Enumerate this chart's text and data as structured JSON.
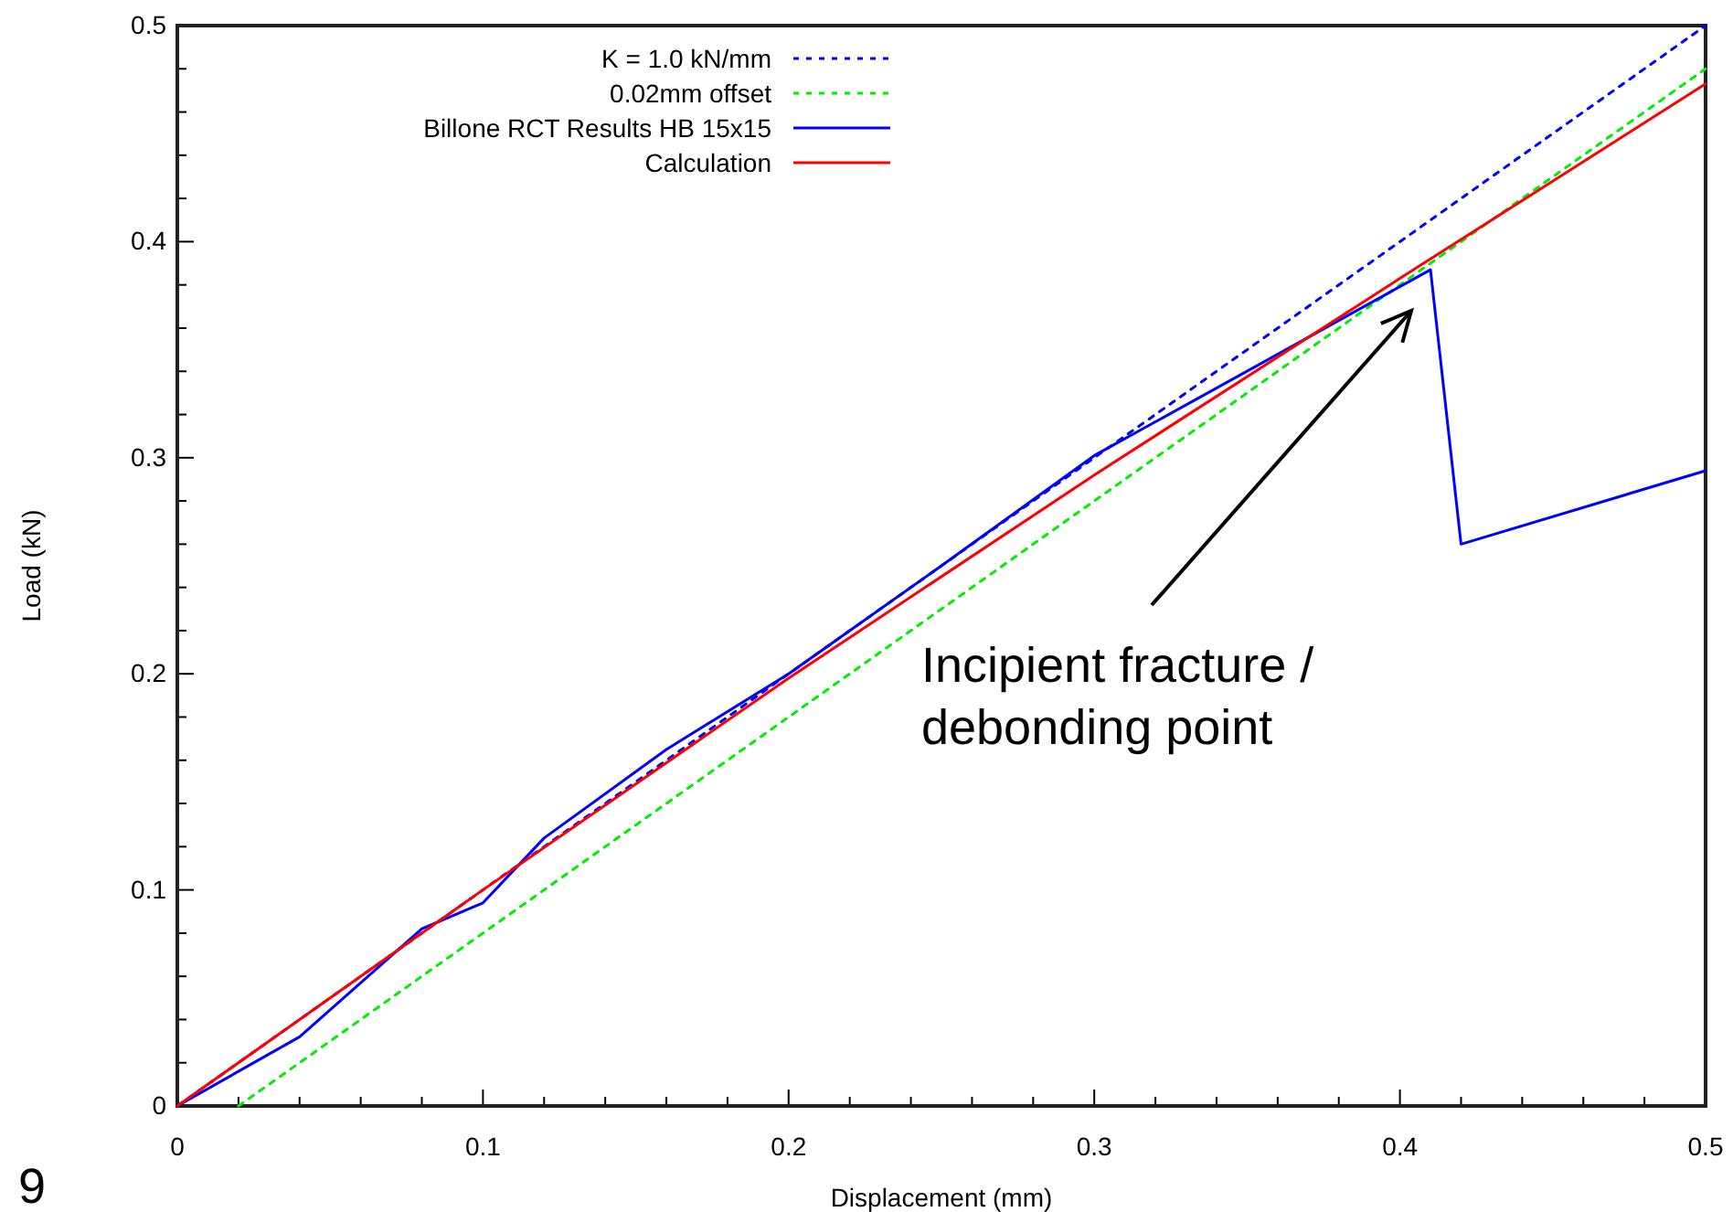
{
  "chart_data": {
    "type": "line",
    "xlabel": "Displacement (mm)",
    "ylabel": "Load (kN)",
    "xlim": [
      0,
      0.5
    ],
    "ylim": [
      0,
      0.5
    ],
    "xticks": [
      0,
      {
        "value": 0.02,
        "label": null
      },
      {
        "value": 0.04,
        "label": null
      },
      {
        "value": 0.06,
        "label": null
      },
      {
        "value": 0.08,
        "label": null
      },
      0.1,
      {
        "value": 0.12,
        "label": null
      },
      {
        "value": 0.14,
        "label": null
      },
      {
        "value": 0.16,
        "label": null
      },
      {
        "value": 0.18,
        "label": null
      },
      0.2,
      {
        "value": 0.22,
        "label": null
      },
      {
        "value": 0.24,
        "label": null
      },
      {
        "value": 0.26,
        "label": null
      },
      {
        "value": 0.28,
        "label": null
      },
      0.3,
      {
        "value": 0.32,
        "label": null
      },
      {
        "value": 0.34,
        "label": null
      },
      {
        "value": 0.36,
        "label": null
      },
      {
        "value": 0.38,
        "label": null
      },
      0.4,
      {
        "value": 0.42,
        "label": null
      },
      {
        "value": 0.44,
        "label": null
      },
      {
        "value": 0.46,
        "label": null
      },
      {
        "value": 0.48,
        "label": null
      },
      0.5
    ],
    "yticks": [
      0,
      {
        "value": 0.02,
        "label": null
      },
      {
        "value": 0.04,
        "label": null
      },
      {
        "value": 0.06,
        "label": null
      },
      {
        "value": 0.08,
        "label": null
      },
      0.1,
      {
        "value": 0.12,
        "label": null
      },
      {
        "value": 0.14,
        "label": null
      },
      {
        "value": 0.16,
        "label": null
      },
      {
        "value": 0.18,
        "label": null
      },
      0.2,
      {
        "value": 0.22,
        "label": null
      },
      {
        "value": 0.24,
        "label": null
      },
      {
        "value": 0.26,
        "label": null
      },
      {
        "value": 0.28,
        "label": null
      },
      0.3,
      {
        "value": 0.32,
        "label": null
      },
      {
        "value": 0.34,
        "label": null
      },
      {
        "value": 0.36,
        "label": null
      },
      {
        "value": 0.38,
        "label": null
      },
      0.4,
      {
        "value": 0.42,
        "label": null
      },
      {
        "value": 0.44,
        "label": null
      },
      {
        "value": 0.46,
        "label": null
      },
      {
        "value": 0.48,
        "label": null
      },
      0.5
    ],
    "grid": false,
    "legend": "top left",
    "marker": "none",
    "series": [
      {
        "name": "K = 1.0 kN/mm",
        "color": "#0000ff",
        "line_style": "dotted",
        "x": [
          0,
          0.5
        ],
        "values": [
          0,
          0.5
        ]
      },
      {
        "name": "0.02mm offset",
        "color": "#00ee00",
        "line_style": "dotted",
        "x": [
          0.02,
          0.5
        ],
        "values": [
          0,
          0.48
        ]
      },
      {
        "name": "Billone RCT Results HB 15x15",
        "color": "#0000ff",
        "line_style": "solid",
        "x": [
          0,
          0.04,
          0.08,
          0.1,
          0.12,
          0.16,
          0.2,
          0.25,
          0.3,
          0.41,
          0.42,
          0.5
        ],
        "values": [
          0,
          0.032,
          0.082,
          0.094,
          0.124,
          0.165,
          0.2,
          0.25,
          0.301,
          0.387,
          0.26,
          0.294
        ]
      },
      {
        "name": "Calculation",
        "color": "#ff0000",
        "line_style": "solid",
        "x": [
          0,
          0.1,
          0.2,
          0.3,
          0.4,
          0.5
        ],
        "values": [
          0,
          0.1,
          0.198,
          0.292,
          0.383,
          0.473
        ]
      }
    ],
    "annotations": [
      "Incipient fracture / debonding point",
      "9"
    ]
  }
}
